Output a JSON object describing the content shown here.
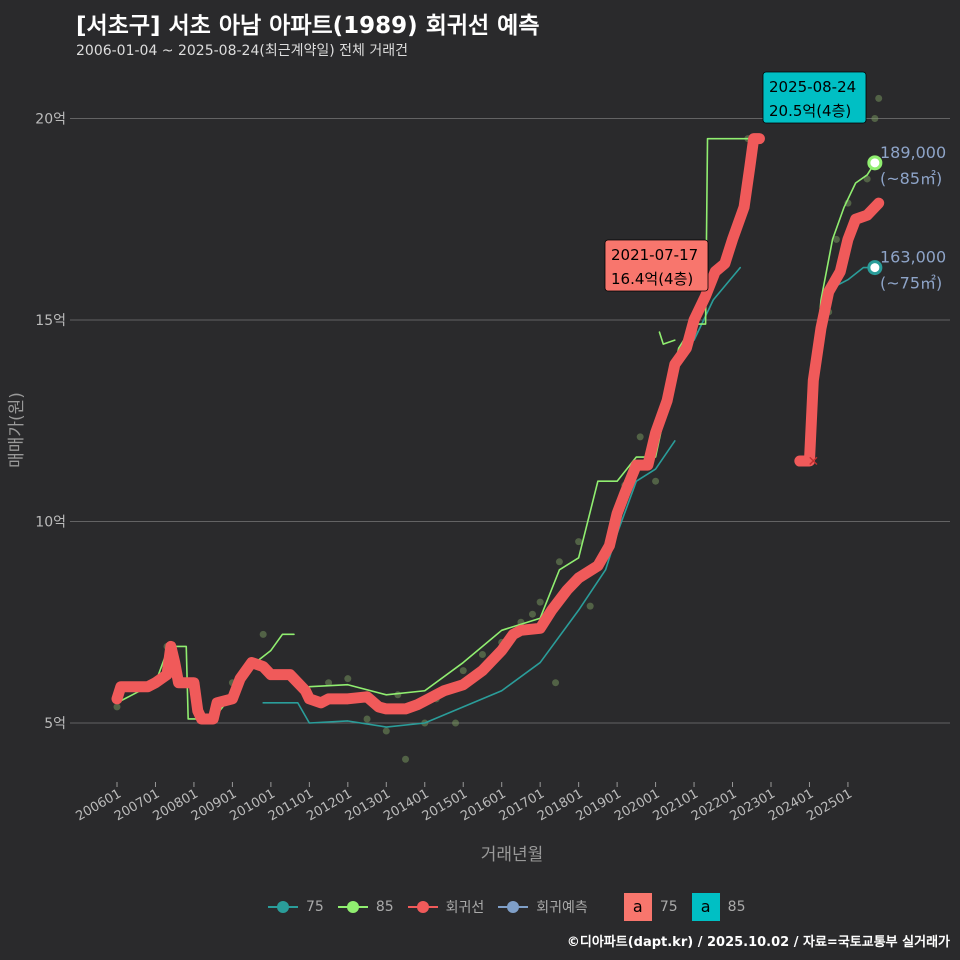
{
  "title": "[서초구] 서초 아남 아파트(1989) 회귀선 예측",
  "subtitle": "2006-01-04 ~ 2025-08-24(최근계약일) 전체 거래건",
  "caption": "©디아파트(dapt.kr) / 2025.10.02 / 자료=국토교통부 실거래가",
  "legend": {
    "items": [
      {
        "label": "75",
        "color": "#2a9d9a"
      },
      {
        "label": "85",
        "color": "#90ee70"
      },
      {
        "label": "회귀선",
        "color": "#f05a5a"
      },
      {
        "label": "회귀예측",
        "color": "#7f9fc8"
      }
    ],
    "boxes": [
      {
        "letter": "a",
        "label": "75",
        "color": "#f8766d"
      },
      {
        "letter": "a",
        "label": "85",
        "color": "#00bfc4"
      }
    ]
  },
  "chart_data": {
    "type": "line",
    "xlabel": "거래년월",
    "ylabel": "매매가(원)",
    "xlim": [
      2005.7,
      2026.2
    ],
    "ylim": [
      3.5,
      21.0
    ],
    "x_ticks": [
      "200601",
      "200701",
      "200801",
      "200901",
      "201001",
      "201101",
      "201201",
      "201301",
      "201401",
      "201501",
      "201601",
      "201701",
      "201801",
      "201901",
      "202001",
      "202101",
      "202201",
      "202301",
      "202401",
      "202501"
    ],
    "y_ticks": [
      {
        "value": 5,
        "label": "5억"
      },
      {
        "value": 10,
        "label": "10억"
      },
      {
        "value": 15,
        "label": "15억"
      },
      {
        "value": 20,
        "label": "20억"
      }
    ],
    "series": [
      {
        "name": "회귀선",
        "color": "#f05a5a",
        "segments": [
          [
            [
              2006.0,
              5.6
            ],
            [
              2006.1,
              5.9
            ],
            [
              2006.8,
              5.9
            ],
            [
              2007.0,
              6.0
            ],
            [
              2007.3,
              6.2
            ],
            [
              2007.4,
              6.9
            ],
            [
              2007.5,
              6.5
            ],
            [
              2007.6,
              6.0
            ],
            [
              2008.0,
              6.0
            ],
            [
              2008.1,
              5.3
            ],
            [
              2008.2,
              5.1
            ],
            [
              2008.5,
              5.1
            ],
            [
              2008.6,
              5.5
            ],
            [
              2009.0,
              5.6
            ],
            [
              2009.2,
              6.1
            ],
            [
              2009.5,
              6.5
            ],
            [
              2009.8,
              6.4
            ],
            [
              2010.0,
              6.2
            ],
            [
              2010.5,
              6.2
            ],
            [
              2010.9,
              5.8
            ],
            [
              2011.0,
              5.6
            ],
            [
              2011.3,
              5.5
            ],
            [
              2011.5,
              5.6
            ],
            [
              2012.0,
              5.6
            ],
            [
              2012.5,
              5.65
            ],
            [
              2012.8,
              5.4
            ],
            [
              2013.0,
              5.35
            ],
            [
              2013.5,
              5.35
            ],
            [
              2013.8,
              5.45
            ],
            [
              2014.0,
              5.55
            ],
            [
              2014.5,
              5.8
            ],
            [
              2015.0,
              5.95
            ],
            [
              2015.5,
              6.3
            ],
            [
              2016.0,
              6.8
            ],
            [
              2016.3,
              7.2
            ],
            [
              2016.5,
              7.3
            ],
            [
              2017.0,
              7.35
            ],
            [
              2017.3,
              7.8
            ],
            [
              2017.7,
              8.3
            ],
            [
              2018.0,
              8.6
            ],
            [
              2018.5,
              8.9
            ],
            [
              2018.8,
              9.4
            ],
            [
              2019.0,
              10.2
            ],
            [
              2019.2,
              10.7
            ],
            [
              2019.5,
              11.4
            ],
            [
              2019.8,
              11.4
            ],
            [
              2020.0,
              12.2
            ],
            [
              2020.3,
              13.0
            ],
            [
              2020.5,
              13.9
            ],
            [
              2020.8,
              14.3
            ],
            [
              2021.0,
              15.0
            ],
            [
              2021.3,
              15.6
            ],
            [
              2021.55,
              16.2
            ],
            [
              2021.8,
              16.4
            ],
            [
              2022.0,
              17.0
            ],
            [
              2022.3,
              17.8
            ],
            [
              2022.45,
              18.8
            ],
            [
              2022.55,
              19.5
            ],
            [
              2022.7,
              19.5
            ]
          ],
          [
            [
              2023.75,
              11.5
            ],
            [
              2024.0,
              11.5
            ],
            [
              2024.1,
              13.5
            ],
            [
              2024.3,
              14.8
            ],
            [
              2024.5,
              15.7
            ],
            [
              2024.8,
              16.2
            ],
            [
              2025.0,
              17.0
            ],
            [
              2025.2,
              17.5
            ],
            [
              2025.5,
              17.6
            ],
            [
              2025.8,
              17.9
            ]
          ]
        ]
      },
      {
        "name": "85",
        "color": "#90ee70",
        "segments": [
          [
            [
              2006.0,
              5.5
            ],
            [
              2007.0,
              6.0
            ],
            [
              2007.35,
              6.9
            ],
            [
              2007.8,
              6.9
            ],
            [
              2007.85,
              5.1
            ],
            [
              2008.5,
              5.1
            ],
            [
              2009.0,
              5.7
            ],
            [
              2009.6,
              6.5
            ],
            [
              2010.0,
              6.8
            ],
            [
              2010.3,
              7.2
            ],
            [
              2010.6,
              7.2
            ]
          ],
          [
            [
              2010.9,
              5.8
            ],
            [
              2011.0,
              5.9
            ],
            [
              2012.0,
              5.95
            ],
            [
              2013.0,
              5.7
            ],
            [
              2014.0,
              5.8
            ],
            [
              2015.0,
              6.5
            ],
            [
              2016.0,
              7.3
            ],
            [
              2017.0,
              7.6
            ],
            [
              2017.5,
              8.8
            ],
            [
              2018.0,
              9.1
            ],
            [
              2018.5,
              11.0
            ],
            [
              2019.0,
              11.0
            ],
            [
              2019.5,
              11.6
            ],
            [
              2020.0,
              11.6
            ],
            [
              2020.6,
              14.3
            ],
            [
              2021.0,
              14.9
            ],
            [
              2021.3,
              14.9
            ],
            [
              2021.35,
              19.5
            ],
            [
              2022.7,
              19.5
            ]
          ],
          [
            [
              2020.1,
              14.7
            ],
            [
              2020.2,
              14.4
            ],
            [
              2020.5,
              14.5
            ]
          ],
          [
            [
              2023.9,
              11.5
            ],
            [
              2024.1,
              13.3
            ],
            [
              2024.3,
              15.5
            ],
            [
              2024.6,
              17.0
            ],
            [
              2024.9,
              17.8
            ],
            [
              2025.2,
              18.4
            ],
            [
              2025.5,
              18.6
            ],
            [
              2025.7,
              18.9
            ]
          ]
        ]
      },
      {
        "name": "75",
        "color": "#2a9d9a",
        "segments": [
          [
            [
              2009.8,
              5.5
            ],
            [
              2010.7,
              5.5
            ],
            [
              2011.0,
              5.0
            ],
            [
              2012.0,
              5.05
            ],
            [
              2013.0,
              4.9
            ],
            [
              2014.0,
              5.0
            ],
            [
              2015.0,
              5.4
            ],
            [
              2016.0,
              5.8
            ],
            [
              2017.0,
              6.5
            ],
            [
              2018.0,
              7.8
            ],
            [
              2018.7,
              8.8
            ],
            [
              2019.0,
              9.7
            ],
            [
              2019.5,
              11.0
            ],
            [
              2020.0,
              11.3
            ],
            [
              2020.5,
              12.0
            ]
          ],
          [
            [
              2021.0,
              14.5
            ],
            [
              2021.5,
              15.5
            ],
            [
              2022.2,
              16.3
            ]
          ],
          [
            [
              2024.3,
              15.0
            ],
            [
              2024.6,
              15.8
            ],
            [
              2025.0,
              16.0
            ],
            [
              2025.4,
              16.3
            ],
            [
              2025.7,
              16.3
            ]
          ]
        ]
      }
    ],
    "scatter": [
      [
        2006.0,
        5.4
      ],
      [
        2007.3,
        6.9
      ],
      [
        2009.0,
        6.0
      ],
      [
        2009.8,
        7.2
      ],
      [
        2011.5,
        6.0
      ],
      [
        2012.0,
        6.1
      ],
      [
        2012.5,
        5.1
      ],
      [
        2013.0,
        4.8
      ],
      [
        2013.3,
        5.7
      ],
      [
        2013.5,
        4.1
      ],
      [
        2014.0,
        5.0
      ],
      [
        2014.3,
        5.6
      ],
      [
        2014.8,
        5.0
      ],
      [
        2015.0,
        6.3
      ],
      [
        2015.5,
        6.7
      ],
      [
        2016.0,
        7.0
      ],
      [
        2016.5,
        7.5
      ],
      [
        2016.8,
        7.7
      ],
      [
        2017.0,
        8.0
      ],
      [
        2017.5,
        9.0
      ],
      [
        2018.0,
        9.5
      ],
      [
        2018.3,
        7.9
      ],
      [
        2019.2,
        10.9
      ],
      [
        2019.6,
        12.1
      ],
      [
        2020.0,
        11.0
      ],
      [
        2021.0,
        14.7
      ],
      [
        2021.7,
        16.3
      ],
      [
        2022.4,
        19.5
      ],
      [
        2024.5,
        15.2
      ],
      [
        2024.7,
        17.0
      ],
      [
        2025.0,
        17.9
      ],
      [
        2025.5,
        18.5
      ],
      [
        2025.8,
        20.5
      ],
      [
        2025.7,
        20.0
      ],
      [
        2017.4,
        6.0
      ]
    ],
    "annotations": [
      {
        "date": "2021-07-17",
        "text": "16.4억(4층)",
        "color": "#f8766d"
      },
      {
        "date": "2025-08-24",
        "text": "20.5억(4층)",
        "color": "#00bfc4"
      }
    ],
    "end_labels": [
      {
        "value": "189,000",
        "area": "(~85㎡)",
        "color": "#90ee70"
      },
      {
        "value": "163,000",
        "area": "(~75㎡)",
        "color": "#2a9d9a"
      }
    ]
  }
}
